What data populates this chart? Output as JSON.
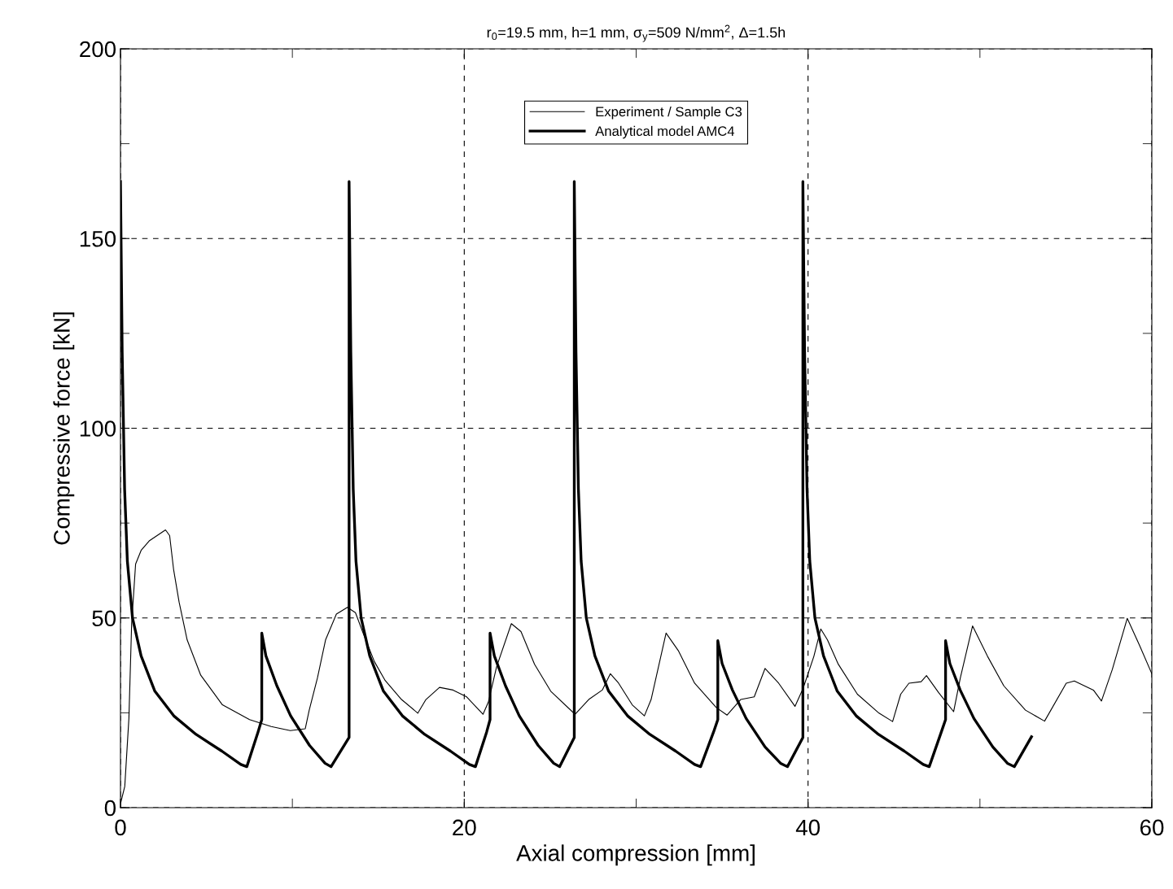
{
  "chart_data": {
    "type": "line",
    "title": "r$_{0}$=19.5 mm, h=1 mm, σ$_{y}$=509 N/mm$^{2}$, Δ=1.5h",
    "xlabel": "Axial compression [mm]",
    "ylabel": "Compressive force [kN]",
    "xlim": [
      0,
      60
    ],
    "ylim": [
      0,
      200
    ],
    "xticks": [
      0,
      {
        "value": 10,
        "label": null
      },
      20,
      {
        "value": 30,
        "label": null
      },
      40,
      {
        "value": 50,
        "label": null
      },
      60
    ],
    "yticks": [
      0,
      {
        "value": 25,
        "label": null
      },
      50,
      {
        "value": 75,
        "label": null
      },
      100,
      {
        "value": 125,
        "label": null
      },
      150,
      {
        "value": 175,
        "label": null
      },
      200
    ],
    "grid": true,
    "legend": "top",
    "marker": "none",
    "series": [
      {
        "name": "Experiment / Sample C3",
        "color": "#000000",
        "line_style": "solid",
        "x": [
          0.02,
          0.25,
          0.49,
          0.65,
          0.88,
          1.2,
          1.67,
          2.62,
          2.86,
          3.09,
          3.41,
          3.88,
          4.67,
          5.93,
          7.51,
          8.77,
          9.88,
          10.75,
          10.98,
          11.46,
          11.93,
          12.56,
          13.2,
          13.67,
          14.14,
          14.77,
          15.4,
          16.35,
          17.3,
          17.77,
          18.56,
          19.35,
          20.14,
          21.09,
          21.4,
          21.88,
          22.74,
          23.3,
          24.09,
          25.03,
          26.45,
          27.24,
          28.03,
          28.5,
          28.98,
          29.77,
          30.48,
          30.87,
          31.74,
          32.45,
          33.4,
          34.66,
          35.29,
          36.08,
          36.87,
          37.5,
          38.29,
          39.24,
          39.71,
          40.34,
          40.74,
          41.13,
          41.76,
          42.87,
          44.13,
          44.92,
          45.39,
          45.87,
          46.58,
          46.89,
          47.6,
          48.47,
          48.86,
          49.57,
          50.44,
          51.39,
          52.65,
          53.76,
          55.02,
          55.49,
          56.6,
          57.07,
          57.7,
          58.57,
          59.28,
          60.0
        ],
        "values": [
          1.4,
          5.6,
          23.5,
          48.5,
          64.2,
          67.8,
          70.3,
          73.2,
          71.7,
          62.8,
          54.2,
          44.2,
          34.9,
          27.1,
          23.2,
          21.4,
          20.3,
          20.8,
          25.7,
          34.2,
          44.2,
          51.0,
          52.8,
          51.4,
          45.7,
          38.5,
          33.5,
          28.5,
          24.9,
          28.5,
          31.7,
          31.0,
          29.2,
          24.6,
          27.8,
          37.1,
          48.5,
          46.4,
          37.8,
          30.7,
          24.6,
          28.5,
          31.0,
          35.3,
          32.8,
          27.1,
          24.2,
          28.5,
          46.0,
          41.4,
          32.8,
          26.4,
          24.4,
          28.5,
          29.2,
          36.7,
          32.8,
          26.7,
          31.4,
          39.9,
          47.1,
          44.2,
          37.8,
          29.9,
          24.9,
          22.7,
          29.9,
          32.8,
          33.2,
          34.8,
          30.3,
          25.3,
          34.2,
          47.9,
          39.9,
          32.1,
          25.7,
          22.8,
          32.8,
          33.4,
          31.0,
          28.1,
          36.4,
          49.9,
          42.8,
          35.3
        ]
      },
      {
        "name": "Analytical model AMC4",
        "color": "#000000",
        "line_style": "solid",
        "x": [
          0,
          0.1,
          0.24,
          0.4,
          0.7,
          1.2,
          2.0,
          3.1,
          4.4,
          5.9,
          7.0,
          7.35,
          8.0,
          8.22,
          8.22,
          8.46,
          9.1,
          9.9,
          11.0,
          11.9,
          12.25,
          13.3,
          13.3,
          13.4,
          13.54,
          13.7,
          14.0,
          14.5,
          15.3,
          16.4,
          17.7,
          19.2,
          20.3,
          20.65,
          21.3,
          21.5,
          21.5,
          21.75,
          22.4,
          23.2,
          24.3,
          25.2,
          25.55,
          26.4,
          26.4,
          26.5,
          26.64,
          26.8,
          27.1,
          27.6,
          28.4,
          29.5,
          30.8,
          32.3,
          33.4,
          33.75,
          34.5,
          34.75,
          34.75,
          35.0,
          35.6,
          36.4,
          37.5,
          38.4,
          38.8,
          39.7,
          39.7,
          39.8,
          39.94,
          40.1,
          40.4,
          40.9,
          41.7,
          42.8,
          44.1,
          45.6,
          46.7,
          47.05,
          47.75,
          48.0,
          48.0,
          48.25,
          48.85,
          49.65,
          50.75,
          51.6,
          52.0,
          53.0
        ],
        "values": [
          165,
          120,
          84,
          65,
          50,
          40,
          30.7,
          24.2,
          19.3,
          14.9,
          11.4,
          10.8,
          19.9,
          23.2,
          46,
          40,
          32.1,
          24.2,
          16.4,
          11.7,
          10.8,
          18.5,
          165,
          120,
          84,
          65,
          50,
          40,
          30.7,
          24.2,
          19.3,
          14.9,
          11.4,
          10.8,
          19.9,
          23.2,
          46,
          40,
          32.1,
          24.2,
          16.4,
          11.7,
          10.8,
          18.5,
          165,
          120,
          84,
          65,
          50,
          40,
          30.7,
          24.2,
          19.3,
          14.9,
          11.4,
          10.8,
          19.9,
          23.2,
          44,
          38,
          31,
          23.5,
          16,
          11.7,
          10.8,
          18.5,
          165,
          120,
          84,
          65,
          50,
          40,
          30.7,
          24.2,
          19.3,
          14.9,
          11.4,
          10.8,
          19.9,
          23.2,
          44,
          38,
          31,
          23.5,
          16,
          11.7,
          10.8,
          18.7
        ]
      }
    ]
  }
}
